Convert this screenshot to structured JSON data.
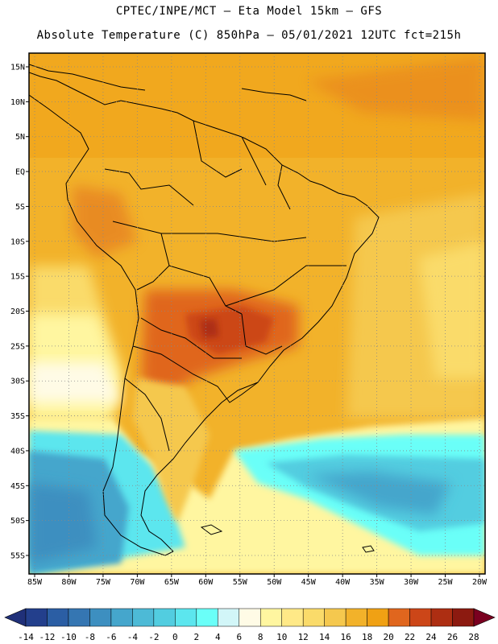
{
  "header": {
    "line1": "CPTEC/INPE/MCT –  Eta Model 15km – GFS",
    "line2": "Absolute Temperature (C) 850hPa – 05/01/2021 12UTC fct=215h"
  },
  "map": {
    "lat_ticks": [
      "15N",
      "10N",
      "5N",
      "EQ",
      "5S",
      "10S",
      "15S",
      "20S",
      "25S",
      "30S",
      "35S",
      "40S",
      "45S",
      "50S",
      "55S"
    ],
    "lon_ticks": [
      "85W",
      "80W",
      "75W",
      "70W",
      "65W",
      "60W",
      "55W",
      "50W",
      "45W",
      "40W",
      "35W",
      "30W",
      "25W",
      "20W"
    ],
    "lat_values": [
      15,
      10,
      5,
      0,
      -5,
      -10,
      -15,
      -20,
      -25,
      -30,
      -35,
      -40,
      -45,
      -50,
      -55
    ],
    "lon_values": [
      -85,
      -80,
      -75,
      -70,
      -65,
      -60,
      -55,
      -50,
      -45,
      -40,
      -35,
      -30,
      -25,
      -20
    ]
  },
  "colorbar": {
    "labels": [
      "-14",
      "-12",
      "-10",
      "-8",
      "-6",
      "-4",
      "-2",
      "0",
      "2",
      "4",
      "6",
      "8",
      "10",
      "12",
      "14",
      "16",
      "18",
      "20",
      "22",
      "24",
      "26",
      "28"
    ],
    "colors": [
      "#233f8c",
      "#2b5ea4",
      "#3576b2",
      "#3d8fc0",
      "#45a6cc",
      "#4dbad6",
      "#52cde0",
      "#5ce6ee",
      "#6afff8",
      "#d2f6f8",
      "#fffbe6",
      "#fff6a0",
      "#ffe987",
      "#fadb6a",
      "#f5c84e",
      "#f2b22a",
      "#f0a114",
      "#e0661e",
      "#cc4618",
      "#ad2e12",
      "#8c1a10"
    ],
    "under_color": "#203079",
    "over_color": "#7a0020"
  }
}
